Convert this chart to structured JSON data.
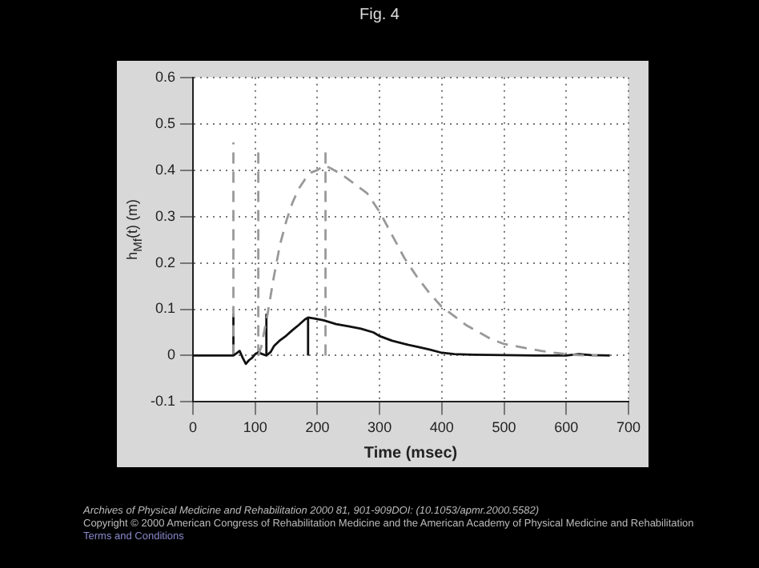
{
  "chart_data": {
    "type": "line",
    "title": "Fig. 4",
    "xlabel": "Time (msec)",
    "ylabel": "h$_{Mf}$(t) (m)",
    "xlim": [
      0,
      700
    ],
    "xticks": [
      0,
      100,
      200,
      300,
      400,
      500,
      600,
      700
    ],
    "ylim": [
      -0.1,
      0.6
    ],
    "yticks": [
      -0.1,
      0,
      0.1,
      0.2,
      0.3,
      0.4,
      0.5,
      0.6
    ],
    "grid": true,
    "marker": "none",
    "series": [
      {
        "color": "#999999",
        "line_style": "dashed",
        "x": [
          105,
          110,
          120,
          130,
          140,
          150,
          160,
          170,
          180,
          190,
          200,
          210,
          220,
          240,
          260,
          280,
          300,
          320,
          340,
          360,
          380,
          400,
          420,
          440,
          460,
          480,
          500,
          520,
          540,
          560,
          580,
          600,
          620,
          650
        ],
        "values": [
          0,
          0.02,
          0.09,
          0.17,
          0.24,
          0.29,
          0.33,
          0.36,
          0.38,
          0.395,
          0.4,
          0.41,
          0.405,
          0.39,
          0.37,
          0.35,
          0.31,
          0.26,
          0.21,
          0.17,
          0.135,
          0.105,
          0.085,
          0.065,
          0.05,
          0.035,
          0.025,
          0.02,
          0.015,
          0.01,
          0.006,
          0.003,
          0.001,
          0
        ]
      },
      {
        "color": "#111111",
        "line_style": "solid",
        "x": [
          0,
          65,
          70,
          75,
          80,
          85,
          90,
          95,
          100,
          105,
          110,
          118,
          125,
          130,
          140,
          150,
          160,
          170,
          180,
          185,
          195,
          210,
          230,
          250,
          270,
          290,
          300,
          320,
          340,
          360,
          380,
          400,
          420,
          450,
          500,
          550,
          600,
          620,
          640,
          670
        ],
        "values": [
          0,
          0,
          0.005,
          0.01,
          -0.005,
          -0.018,
          -0.01,
          -0.005,
          0.003,
          0.007,
          0.004,
          0,
          0.008,
          0.02,
          0.033,
          0.043,
          0.055,
          0.066,
          0.078,
          0.082,
          0.08,
          0.076,
          0.068,
          0.063,
          0.058,
          0.05,
          0.042,
          0.032,
          0.025,
          0.019,
          0.013,
          0.006,
          0.003,
          0.002,
          0.001,
          0,
          0,
          0.003,
          0.001,
          0
        ]
      },
      {
        "color": "#999999",
        "line_style": "dashed",
        "x": [
          65,
          65
        ],
        "values": [
          0,
          0.46
        ]
      },
      {
        "color": "#999999",
        "line_style": "dashed",
        "x": [
          105,
          105
        ],
        "values": [
          0,
          0.44
        ]
      },
      {
        "color": "#999999",
        "line_style": "dashed",
        "x": [
          213,
          213
        ],
        "values": [
          0,
          0.44
        ]
      },
      {
        "color": "#111111",
        "line_style": "solid",
        "x": [
          65,
          65
        ],
        "values": [
          0,
          0.09
        ]
      },
      {
        "color": "#111111",
        "line_style": "solid",
        "x": [
          118,
          118
        ],
        "values": [
          0,
          0.09
        ]
      },
      {
        "color": "#111111",
        "line_style": "solid",
        "x": [
          185,
          185
        ],
        "values": [
          0,
          0.08
        ]
      }
    ],
    "annotations": [
      "Archives of Physical Medicine and Rehabilitation 2000 81, 901-909DOI: (10.1053/apmr.2000.5582)",
      "Copyright © 2000 American Congress of Rehabilitation Medicine and the American Academy of Physical Medicine and Rehabilitation",
      "Terms and Conditions"
    ]
  }
}
